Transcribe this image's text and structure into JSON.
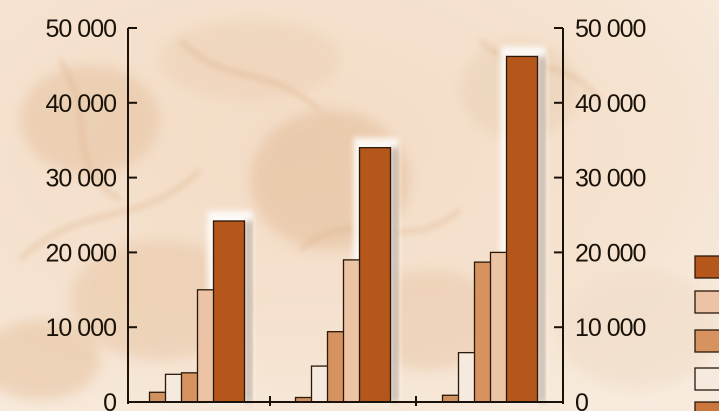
{
  "chart_data": {
    "type": "bar",
    "categories": [
      "",
      "",
      ""
    ],
    "series": [
      {
        "color": "#d0915f",
        "values": [
          1300,
          600,
          900
        ]
      },
      {
        "color": "#f6e9de",
        "values": [
          3700,
          4800,
          6600
        ]
      },
      {
        "color": "#d7935f",
        "values": [
          3900,
          9400,
          18700
        ]
      },
      {
        "color": "#edc3a5",
        "values": [
          15000,
          19000,
          20000
        ]
      },
      {
        "color": "#b5561a",
        "values": [
          24200,
          34000,
          46200
        ]
      }
    ],
    "ylim": [
      0,
      50000
    ],
    "yticks": [
      0,
      10000,
      20000,
      30000,
      40000,
      50000
    ],
    "ytick_labels": [
      "0",
      "10 000",
      "20 000",
      "30 000",
      "40 000",
      "50 000"
    ],
    "dual_y_axis": true,
    "grid": false,
    "legend_placement": "right (partially cropped)",
    "legend_swatch_colors": [
      "#b5561a",
      "#edc3a5",
      "#d7935f",
      "#f6e9de",
      "#c9773c"
    ],
    "background": "parchment texture",
    "bar_edge_color": "#2a1808"
  }
}
